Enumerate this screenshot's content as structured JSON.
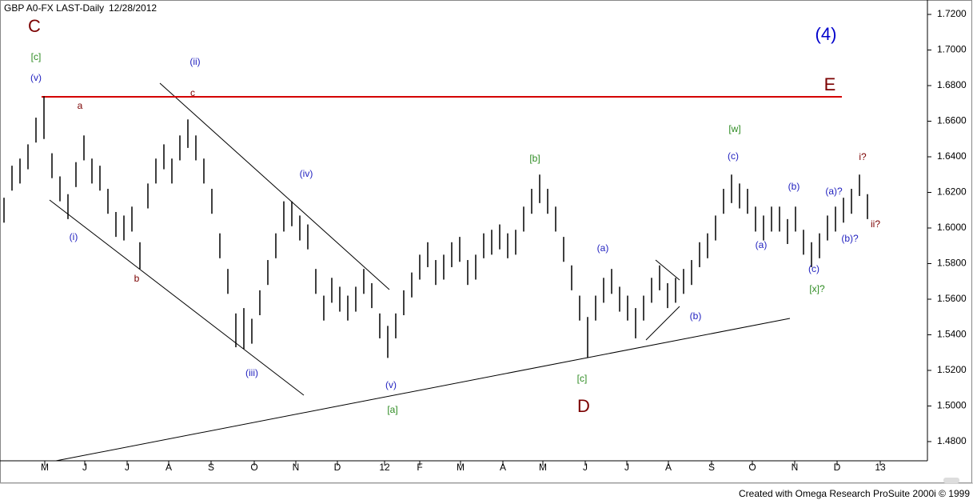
{
  "chart_data": {
    "type": "ohlc",
    "title": "GBP A0-FX LAST-Daily",
    "subtitle": "12/28/2012",
    "footer": "Created with Omega Research ProSuite 2000i © 1999",
    "color": "#000000",
    "x": [
      0.5,
      1.5,
      2.5,
      3.5,
      4.5,
      5.5,
      6.5,
      7.5,
      8.5,
      9.5,
      10.5,
      11.5,
      12.5,
      13.5,
      14.5,
      15.5,
      16.5,
      17.5,
      18.5,
      19.5,
      20.5,
      21.5,
      22.5,
      23.5,
      24.5,
      25.5,
      26.5,
      27.5,
      28.5,
      29.5,
      30.5,
      31.5,
      32.5,
      33.5,
      34.5,
      35.5,
      36.5,
      37.5,
      38.5,
      39.5,
      40.5,
      41.5,
      42.5,
      43.5,
      44.5,
      45.5,
      46.5,
      47.5,
      48.5,
      49.5,
      50.5,
      51.5,
      52.5,
      53.5,
      54.5,
      55.5,
      56.5,
      57.5,
      58.5,
      59.5,
      60.5,
      61.5,
      62.5,
      63.5,
      64.5,
      65.5,
      66.5,
      67.5,
      68.5,
      69.5,
      70.5,
      71.5,
      72.5,
      73.5,
      74.5,
      75.5,
      76.5,
      77.5,
      78.5,
      79.5,
      80.5,
      81.5,
      82.5,
      83.5,
      84.5,
      85.5,
      86.5,
      87.5,
      88.5,
      89.5,
      90.5,
      91.5,
      92.5,
      93.5,
      94.5,
      95.5,
      96.5,
      97.5,
      98.5,
      99.5,
      100.5,
      101.5,
      102.5,
      103.5,
      104.5,
      105.5,
      106.5,
      107.5,
      108.5
    ],
    "high": [
      1.617,
      1.635,
      1.639,
      1.647,
      1.662,
      1.674,
      1.642,
      1.629,
      1.619,
      1.637,
      1.652,
      1.639,
      1.635,
      1.622,
      1.609,
      1.607,
      1.612,
      1.592,
      1.625,
      1.639,
      1.647,
      1.639,
      1.652,
      1.661,
      1.652,
      1.639,
      1.622,
      1.597,
      1.577,
      1.552,
      1.555,
      1.549,
      1.565,
      1.582,
      1.597,
      1.615,
      1.615,
      1.607,
      1.602,
      1.577,
      1.562,
      1.572,
      1.567,
      1.562,
      1.567,
      1.577,
      1.569,
      1.552,
      1.545,
      1.552,
      1.565,
      1.575,
      1.585,
      1.592,
      1.582,
      1.585,
      1.592,
      1.595,
      1.582,
      1.585,
      1.597,
      1.599,
      1.602,
      1.597,
      1.599,
      1.612,
      1.622,
      1.63,
      1.622,
      1.612,
      1.595,
      1.579,
      1.562,
      1.55,
      1.562,
      1.572,
      1.577,
      1.567,
      1.562,
      1.555,
      1.562,
      1.572,
      1.579,
      1.569,
      1.572,
      1.577,
      1.582,
      1.592,
      1.597,
      1.607,
      1.622,
      1.63,
      1.625,
      1.622,
      1.612,
      1.607,
      1.612,
      1.612,
      1.605,
      1.612,
      1.599,
      1.592,
      1.597,
      1.607,
      1.612,
      1.617,
      1.622,
      1.63,
      1.619
    ],
    "low": [
      1.603,
      1.621,
      1.625,
      1.633,
      1.648,
      1.65,
      1.628,
      1.615,
      1.605,
      1.623,
      1.638,
      1.625,
      1.621,
      1.608,
      1.595,
      1.593,
      1.598,
      1.577,
      1.611,
      1.625,
      1.633,
      1.625,
      1.638,
      1.645,
      1.638,
      1.625,
      1.608,
      1.583,
      1.563,
      1.533,
      1.532,
      1.535,
      1.551,
      1.568,
      1.583,
      1.598,
      1.601,
      1.593,
      1.588,
      1.563,
      1.548,
      1.558,
      1.553,
      1.548,
      1.553,
      1.563,
      1.555,
      1.538,
      1.527,
      1.538,
      1.551,
      1.561,
      1.571,
      1.578,
      1.568,
      1.571,
      1.578,
      1.581,
      1.568,
      1.571,
      1.583,
      1.585,
      1.588,
      1.583,
      1.585,
      1.598,
      1.608,
      1.614,
      1.608,
      1.598,
      1.581,
      1.565,
      1.548,
      1.527,
      1.548,
      1.558,
      1.563,
      1.553,
      1.548,
      1.538,
      1.548,
      1.558,
      1.565,
      1.555,
      1.558,
      1.563,
      1.568,
      1.578,
      1.583,
      1.593,
      1.608,
      1.614,
      1.611,
      1.608,
      1.598,
      1.593,
      1.598,
      1.598,
      1.591,
      1.598,
      1.585,
      1.578,
      1.583,
      1.593,
      1.598,
      1.603,
      1.608,
      1.618,
      1.605
    ],
    "xlim": [
      0,
      116
    ],
    "xticks": [
      {
        "value": 5.6,
        "label": "M"
      },
      {
        "value": 10.6,
        "label": "J"
      },
      {
        "value": 15.9,
        "label": "J"
      },
      {
        "value": 21.1,
        "label": "A"
      },
      {
        "value": 26.4,
        "label": "S"
      },
      {
        "value": 31.8,
        "label": "O"
      },
      {
        "value": 37.0,
        "label": "N"
      },
      {
        "value": 42.2,
        "label": "D"
      },
      {
        "value": 48.1,
        "label": "12"
      },
      {
        "value": 52.5,
        "label": "F"
      },
      {
        "value": 57.6,
        "label": "M"
      },
      {
        "value": 62.9,
        "label": "A"
      },
      {
        "value": 67.9,
        "label": "M"
      },
      {
        "value": 73.2,
        "label": "J"
      },
      {
        "value": 78.4,
        "label": "J"
      },
      {
        "value": 83.6,
        "label": "A"
      },
      {
        "value": 89.0,
        "label": "S"
      },
      {
        "value": 94.1,
        "label": "O"
      },
      {
        "value": 99.4,
        "label": "N"
      },
      {
        "value": 104.7,
        "label": "D"
      },
      {
        "value": 110.1,
        "label": "13"
      }
    ],
    "ylim": [
      1.4692,
      1.7281
    ],
    "yticks": [
      {
        "value": 1.72,
        "label": "1.7200"
      },
      {
        "value": 1.7,
        "label": "1.7000"
      },
      {
        "value": 1.68,
        "label": "1.6800"
      },
      {
        "value": 1.66,
        "label": "1.6600"
      },
      {
        "value": 1.64,
        "label": "1.6400"
      },
      {
        "value": 1.62,
        "label": "1.6200"
      },
      {
        "value": 1.6,
        "label": "1.6000"
      },
      {
        "value": 1.58,
        "label": "1.5800"
      },
      {
        "value": 1.56,
        "label": "1.5600"
      },
      {
        "value": 1.54,
        "label": "1.5400"
      },
      {
        "value": 1.52,
        "label": "1.5200"
      },
      {
        "value": 1.5,
        "label": "1.5000"
      },
      {
        "value": 1.48,
        "label": "1.4800"
      }
    ],
    "annotations": [
      {
        "text": "C",
        "color": "#7b0000"
      },
      {
        "text": "[c]",
        "color": "#2e8b22"
      },
      {
        "text": "(v)",
        "color": "#1f1fbf"
      },
      {
        "text": "a",
        "color": "#7b0000"
      },
      {
        "text": "(ii)",
        "color": "#1f1fbf"
      },
      {
        "text": "c",
        "color": "#7b0000"
      },
      {
        "text": "(i)",
        "color": "#1f1fbf"
      },
      {
        "text": "b",
        "color": "#7b0000"
      },
      {
        "text": "(iv)",
        "color": "#1f1fbf"
      },
      {
        "text": "(iii)",
        "color": "#1f1fbf"
      },
      {
        "text": "(v)",
        "color": "#1f1fbf"
      },
      {
        "text": "[a]",
        "color": "#2e8b22"
      },
      {
        "text": "[b]",
        "color": "#2e8b22"
      },
      {
        "text": "(a)",
        "color": "#1f1fbf"
      },
      {
        "text": "[c]",
        "color": "#2e8b22"
      },
      {
        "text": "D",
        "color": "#7b0000"
      },
      {
        "text": "(b)",
        "color": "#1f1fbf"
      },
      {
        "text": "[w]",
        "color": "#2e8b22"
      },
      {
        "text": "(c)",
        "color": "#1f1fbf"
      },
      {
        "text": "(b)",
        "color": "#1f1fbf"
      },
      {
        "text": "(a)",
        "color": "#1f1fbf"
      },
      {
        "text": "(c)",
        "color": "#1f1fbf"
      },
      {
        "text": "[x]?",
        "color": "#2e8b22"
      },
      {
        "text": "(a)?",
        "color": "#1f1fbf"
      },
      {
        "text": "(b)?",
        "color": "#1f1fbf"
      },
      {
        "text": "i?",
        "color": "#7b0000"
      },
      {
        "text": "ii?",
        "color": "#7b0000"
      },
      {
        "text": "(4)",
        "color": "#0000cc"
      },
      {
        "text": "E",
        "color": "#7b0000"
      }
    ]
  }
}
